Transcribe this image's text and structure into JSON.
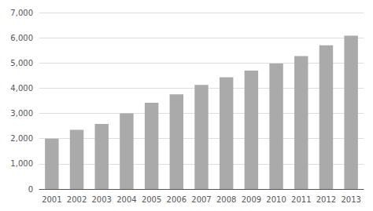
{
  "chart_data": {
    "type": "bar",
    "categories": [
      "2001",
      "2002",
      "2003",
      "2004",
      "2005",
      "2006",
      "2007",
      "2008",
      "2009",
      "2010",
      "2011",
      "2012",
      "2013"
    ],
    "values": [
      2000,
      2350,
      2580,
      3000,
      3420,
      3760,
      4130,
      4430,
      4700,
      4980,
      5270,
      5700,
      6080
    ],
    "color": "#aaaaaa",
    "ylim": [
      0,
      7000
    ],
    "yticks": [
      0,
      {
        "value": 1000,
        "label": "1,000"
      },
      {
        "value": 2000,
        "label": "2,000"
      },
      {
        "value": 3000,
        "label": "3,000"
      },
      {
        "value": 4000,
        "label": "4,000"
      },
      {
        "value": 5000,
        "label": "5,000"
      },
      {
        "value": 6000,
        "label": "6,000"
      },
      {
        "value": 7000,
        "label": "7,000"
      }
    ],
    "grid": true
  }
}
